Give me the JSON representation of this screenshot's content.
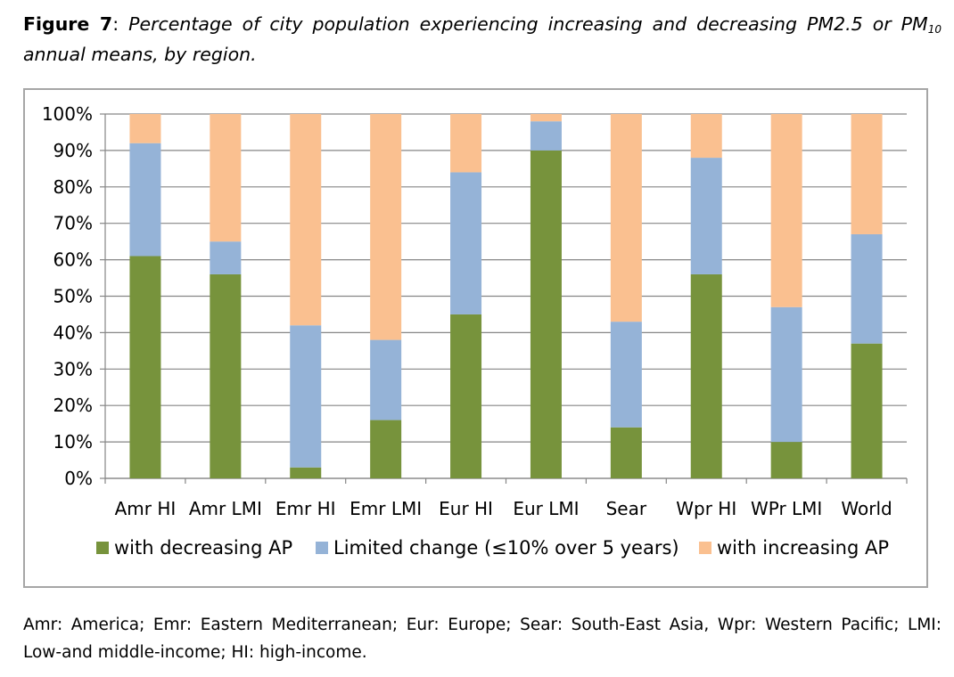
{
  "caption": {
    "figure_label": "Figure 7",
    "separator": ": ",
    "title_part1": "Percentage of city population experiencing increasing and decreasing PM2.5 or PM",
    "title_subscript": "10",
    "title_part2": " annual means, by region."
  },
  "footnote": "Amr: America; Emr: Eastern Mediterranean; Eur: Europe; Sear: South-East Asia, Wpr: Western Pacific; LMI: Low-and middle-income; HI: high-income.",
  "chart_data": {
    "type": "bar",
    "stacked": true,
    "percent_stacked": true,
    "categories": [
      "Amr HI",
      "Amr LMI",
      "Emr HI",
      "Emr LMI",
      "Eur HI",
      "Eur LMI",
      "Sear",
      "Wpr HI",
      "WPr LMI",
      "World"
    ],
    "series": [
      {
        "name": "with decreasing AP",
        "color": "#77933c",
        "values": [
          61,
          56,
          3,
          16,
          45,
          90,
          14,
          56,
          10,
          37
        ]
      },
      {
        "name": "Limited change (≤10% over 5 years)",
        "color": "#95b3d7",
        "values": [
          31,
          9,
          39,
          22,
          39,
          8,
          29,
          32,
          37,
          30
        ]
      },
      {
        "name": "with increasing AP",
        "color": "#fac090",
        "values": [
          8,
          35,
          58,
          62,
          16,
          2,
          57,
          12,
          53,
          33
        ]
      }
    ],
    "y_ticks": [
      "0%",
      "10%",
      "20%",
      "30%",
      "40%",
      "50%",
      "60%",
      "70%",
      "80%",
      "90%",
      "100%"
    ],
    "ylim": [
      0,
      100
    ],
    "grid": true,
    "legend_position": "bottom"
  }
}
